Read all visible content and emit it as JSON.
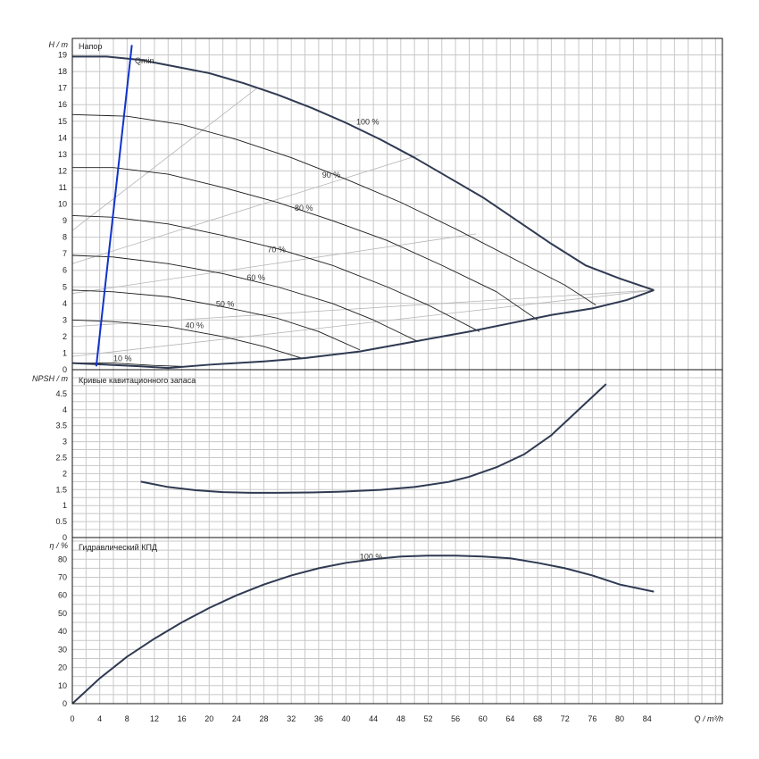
{
  "chart_data": [
    {
      "type": "line",
      "title": "Напор",
      "ylabel": "H / m",
      "xlabel": "Q / m³/h",
      "xlim": [
        0,
        95
      ],
      "ylim": [
        0,
        20
      ],
      "x_ticks": [
        0,
        4,
        8,
        12,
        16,
        20,
        24,
        28,
        32,
        36,
        40,
        44,
        48,
        52,
        56,
        60,
        64,
        68,
        72,
        76,
        80,
        84
      ],
      "y_ticks": [
        0,
        1,
        2,
        3,
        4,
        5,
        6,
        7,
        8,
        9,
        10,
        11,
        12,
        13,
        14,
        15,
        16,
        17,
        18,
        19
      ],
      "grid": true,
      "qmin_label": "Qmin",
      "qmin_line": [
        [
          3.5,
          0.2
        ],
        [
          8.7,
          19.6
        ]
      ],
      "series": [
        {
          "name": "100 %",
          "points": [
            [
              0,
              18.9
            ],
            [
              5,
              18.9
            ],
            [
              10,
              18.7
            ],
            [
              15,
              18.3
            ],
            [
              20,
              17.9
            ],
            [
              25,
              17.3
            ],
            [
              30,
              16.6
            ],
            [
              35,
              15.8
            ],
            [
              40,
              14.9
            ],
            [
              45,
              13.9
            ],
            [
              50,
              12.8
            ],
            [
              55,
              11.6
            ],
            [
              60,
              10.4
            ],
            [
              65,
              9.0
            ],
            [
              70,
              7.6
            ],
            [
              75,
              6.3
            ],
            [
              80,
              5.5
            ],
            [
              85,
              4.8
            ]
          ]
        },
        {
          "name": "90 %",
          "points": [
            [
              0,
              15.4
            ],
            [
              8,
              15.3
            ],
            [
              16,
              14.8
            ],
            [
              24,
              13.9
            ],
            [
              32,
              12.8
            ],
            [
              40,
              11.5
            ],
            [
              48,
              10.1
            ],
            [
              56,
              8.5
            ],
            [
              64,
              6.8
            ],
            [
              72,
              5.1
            ],
            [
              76.5,
              3.9
            ]
          ]
        },
        {
          "name": "80 %",
          "points": [
            [
              0,
              12.2
            ],
            [
              6,
              12.2
            ],
            [
              14,
              11.8
            ],
            [
              22,
              11.0
            ],
            [
              30,
              10.1
            ],
            [
              38,
              9.0
            ],
            [
              46,
              7.8
            ],
            [
              54,
              6.3
            ],
            [
              62,
              4.7
            ],
            [
              68,
              3.0
            ]
          ]
        },
        {
          "name": "70 %",
          "points": [
            [
              0,
              9.3
            ],
            [
              6,
              9.2
            ],
            [
              14,
              8.8
            ],
            [
              22,
              8.1
            ],
            [
              30,
              7.3
            ],
            [
              38,
              6.3
            ],
            [
              46,
              5.0
            ],
            [
              52,
              3.9
            ],
            [
              59.5,
              2.3
            ]
          ]
        },
        {
          "name": "60 %",
          "points": [
            [
              0,
              6.9
            ],
            [
              6,
              6.8
            ],
            [
              14,
              6.4
            ],
            [
              22,
              5.8
            ],
            [
              30,
              5.0
            ],
            [
              38,
              4.0
            ],
            [
              44,
              3.0
            ],
            [
              50.5,
              1.7
            ]
          ]
        },
        {
          "name": "50 %",
          "points": [
            [
              0,
              4.8
            ],
            [
              6,
              4.7
            ],
            [
              14,
              4.4
            ],
            [
              22,
              3.8
            ],
            [
              30,
              3.1
            ],
            [
              36,
              2.3
            ],
            [
              42,
              1.2
            ]
          ]
        },
        {
          "name": "40 %",
          "points": [
            [
              0,
              3.0
            ],
            [
              6,
              2.9
            ],
            [
              14,
              2.6
            ],
            [
              22,
              2.0
            ],
            [
              28,
              1.4
            ],
            [
              33.5,
              0.7
            ]
          ]
        },
        {
          "name": "10 %",
          "points": [
            [
              0,
              0.4
            ],
            [
              6,
              0.4
            ],
            [
              12,
              0.25
            ],
            [
              16,
              0.2
            ]
          ]
        },
        {
          "name": "min",
          "points": [
            [
              0,
              0.4
            ],
            [
              5,
              0.3
            ],
            [
              10,
              0.2
            ],
            [
              14,
              0.1
            ],
            [
              20,
              0.3
            ],
            [
              28,
              0.5
            ],
            [
              34,
              0.7
            ],
            [
              42,
              1.1
            ],
            [
              50,
              1.7
            ],
            [
              58,
              2.3
            ],
            [
              64,
              2.8
            ],
            [
              70,
              3.3
            ],
            [
              76,
              3.7
            ],
            [
              81,
              4.2
            ],
            [
              85,
              4.8
            ]
          ]
        }
      ],
      "eff_lines": [
        {
          "points": [
            [
              0,
              8.4
            ],
            [
              27,
              17.0
            ]
          ]
        },
        {
          "points": [
            [
              0,
              6.4
            ],
            [
              51,
              13.0
            ]
          ]
        },
        {
          "points": [
            [
              0,
              4.6
            ],
            [
              59,
              8.2
            ]
          ]
        },
        {
          "points": [
            [
              0,
              2.6
            ],
            [
              85,
              4.8
            ]
          ]
        },
        {
          "points": [
            [
              0,
              0.8
            ],
            [
              85,
              4.8
            ]
          ]
        }
      ],
      "labels": [
        {
          "text": "100 %",
          "x": 41.5,
          "y": 14.8
        },
        {
          "text": "90 %",
          "x": 36.5,
          "y": 11.6
        },
        {
          "text": "80 %",
          "x": 32.5,
          "y": 9.6
        },
        {
          "text": "70 %",
          "x": 28.5,
          "y": 7.1
        },
        {
          "text": "60 %",
          "x": 25.5,
          "y": 5.4
        },
        {
          "text": "50 %",
          "x": 21,
          "y": 3.8
        },
        {
          "text": "40 %",
          "x": 16.5,
          "y": 2.5
        },
        {
          "text": "10 %",
          "x": 6,
          "y": 0.5
        }
      ]
    },
    {
      "type": "line",
      "title": "Кривые кавитационного запаса",
      "ylabel": "NPSH / m",
      "xlim": [
        0,
        95
      ],
      "ylim": [
        0,
        5.25
      ],
      "y_ticks": [
        0,
        0.5,
        1,
        1.5,
        2,
        2.5,
        3,
        3.5,
        4,
        4.5
      ],
      "grid": true,
      "series": [
        {
          "name": "",
          "points": [
            [
              10,
              1.75
            ],
            [
              14,
              1.58
            ],
            [
              18,
              1.48
            ],
            [
              22,
              1.42
            ],
            [
              26,
              1.4
            ],
            [
              30,
              1.4
            ],
            [
              35,
              1.41
            ],
            [
              40,
              1.44
            ],
            [
              45,
              1.49
            ],
            [
              50,
              1.58
            ],
            [
              55,
              1.74
            ],
            [
              58,
              1.9
            ],
            [
              62,
              2.2
            ],
            [
              66,
              2.6
            ],
            [
              70,
              3.2
            ],
            [
              74,
              4.0
            ],
            [
              78,
              4.8
            ]
          ]
        }
      ]
    },
    {
      "type": "line",
      "title": "Гидравлический КПД",
      "ylabel": "η / %",
      "xlim": [
        0,
        95
      ],
      "ylim": [
        0,
        92
      ],
      "y_ticks": [
        0,
        10,
        20,
        30,
        40,
        50,
        60,
        70,
        80
      ],
      "grid": true,
      "series": [
        {
          "name": "100 %",
          "points": [
            [
              0,
              0
            ],
            [
              2,
              7
            ],
            [
              4,
              14
            ],
            [
              8,
              26
            ],
            [
              12,
              36
            ],
            [
              16,
              45
            ],
            [
              20,
              53
            ],
            [
              24,
              60
            ],
            [
              28,
              66
            ],
            [
              32,
              71
            ],
            [
              36,
              75
            ],
            [
              40,
              78
            ],
            [
              44,
              80
            ],
            [
              48,
              81.5
            ],
            [
              52,
              82
            ],
            [
              56,
              82
            ],
            [
              60,
              81.5
            ],
            [
              64,
              80.5
            ],
            [
              68,
              78
            ],
            [
              72,
              75
            ],
            [
              76,
              71
            ],
            [
              80,
              66
            ],
            [
              85,
              62
            ]
          ]
        }
      ],
      "labels": [
        {
          "text": "100 %",
          "x": 42,
          "y": 80
        }
      ]
    }
  ]
}
